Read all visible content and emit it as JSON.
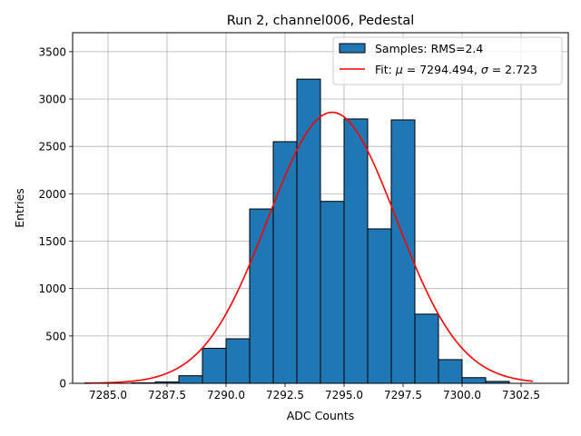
{
  "chart_data": {
    "type": "histogram",
    "title": "Run 2, channel006, Pedestal",
    "xlabel": "ADC Counts",
    "ylabel": "Entries",
    "xlim": [
      7283.5,
      7304.5
    ],
    "ylim": [
      0,
      3700
    ],
    "xticks": [
      7285.0,
      7287.5,
      7290.0,
      7292.5,
      7295.0,
      7297.5,
      7300.0,
      7302.5
    ],
    "xtick_labels": [
      "7285.0",
      "7287.5",
      "7290.0",
      "7292.5",
      "7295.0",
      "7297.5",
      "7300.0",
      "7302.5"
    ],
    "yticks": [
      0,
      500,
      1000,
      1500,
      2000,
      2500,
      3000,
      3500
    ],
    "ytick_labels": [
      "0",
      "500",
      "1000",
      "1500",
      "2000",
      "2500",
      "3000",
      "3500"
    ],
    "grid": true,
    "legend_position": "top-right",
    "bar_color": "#1f77b4",
    "fit_color": "#ff0000",
    "bins": [
      {
        "start": 7284.0,
        "end": 7285.0,
        "count": 0
      },
      {
        "start": 7285.0,
        "end": 7286.0,
        "count": 0
      },
      {
        "start": 7286.0,
        "end": 7287.0,
        "count": 5
      },
      {
        "start": 7287.0,
        "end": 7288.0,
        "count": 15
      },
      {
        "start": 7288.0,
        "end": 7289.0,
        "count": 80
      },
      {
        "start": 7289.0,
        "end": 7290.0,
        "count": 370
      },
      {
        "start": 7290.0,
        "end": 7291.0,
        "count": 470
      },
      {
        "start": 7291.0,
        "end": 7292.0,
        "count": 1840
      },
      {
        "start": 7292.0,
        "end": 7293.0,
        "count": 2550
      },
      {
        "start": 7293.0,
        "end": 7294.0,
        "count": 3210
      },
      {
        "start": 7294.0,
        "end": 7295.0,
        "count": 1920
      },
      {
        "start": 7295.0,
        "end": 7296.0,
        "count": 2790
      },
      {
        "start": 7296.0,
        "end": 7297.0,
        "count": 1630
      },
      {
        "start": 7297.0,
        "end": 7298.0,
        "count": 2780
      },
      {
        "start": 7298.0,
        "end": 7299.0,
        "count": 730
      },
      {
        "start": 7299.0,
        "end": 7300.0,
        "count": 250
      },
      {
        "start": 7300.0,
        "end": 7301.0,
        "count": 60
      },
      {
        "start": 7301.0,
        "end": 7302.0,
        "count": 20
      },
      {
        "start": 7302.0,
        "end": 7303.0,
        "count": 0
      }
    ],
    "fit": {
      "mu": 7294.494,
      "sigma": 2.723,
      "amplitude": 2860,
      "x_range": [
        7284.0,
        7303.0
      ]
    },
    "legend": {
      "samples_label": "Samples: RMS=2.4",
      "fit_label_prefix": "Fit: ",
      "mu_symbol": "μ",
      "mu_text": " = 7294.494, ",
      "sigma_symbol": "σ",
      "sigma_text": " = 2.723"
    }
  }
}
